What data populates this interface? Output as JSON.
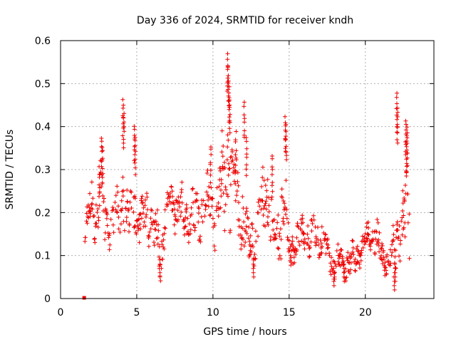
{
  "chart_data": {
    "type": "scatter",
    "title": "Day 336 of 2024, SRMTID for receiver kndh",
    "xlabel": "GPS time / hours",
    "ylabel": "SRMTID / TECUs",
    "xlim": [
      0,
      24.5
    ],
    "ylim": [
      0,
      0.6
    ],
    "x_ticks": [
      0,
      5,
      10,
      15,
      20
    ],
    "x_tick_labels": [
      "0",
      "5",
      "10",
      "15",
      "20"
    ],
    "y_ticks": [
      0,
      0.1,
      0.2,
      0.3,
      0.4,
      0.5,
      0.6
    ],
    "y_tick_labels": [
      "0",
      "0.1",
      "0.2",
      "0.3",
      "0.4",
      "0.5",
      "0.6"
    ],
    "grid": true,
    "marker": "plus",
    "color": "#ee0000",
    "series": [
      {
        "name": "kndh",
        "x_start": 1.6,
        "x_end": 22.9,
        "x_step": 0.0167,
        "note": "dense 1-minute samples",
        "envelope": {
          "x": [
            1.6,
            1.8,
            2.0,
            2.3,
            2.5,
            2.6,
            2.8,
            3.0,
            3.3,
            3.5,
            3.7,
            4.0,
            4.1,
            4.3,
            4.6,
            4.8,
            5.0,
            5.3,
            5.6,
            6.0,
            6.3,
            6.6,
            6.9,
            7.2,
            7.5,
            7.8,
            8.1,
            8.5,
            8.9,
            9.3,
            9.7,
            10.0,
            10.3,
            10.6,
            10.9,
            11.0,
            11.2,
            11.5,
            11.8,
            12.1,
            12.3,
            12.6,
            12.9,
            13.2,
            13.5,
            13.8,
            14.1,
            14.4,
            14.7,
            14.9,
            15.2,
            15.6,
            16.0,
            16.4,
            16.8,
            17.2,
            17.6,
            17.9,
            18.3,
            18.7,
            19.1,
            19.5,
            19.9,
            20.3,
            20.7,
            21.1,
            21.4,
            21.7,
            22.0,
            22.2,
            22.5,
            22.7,
            22.9
          ],
          "y": [
            0.15,
            0.2,
            0.21,
            0.19,
            0.22,
            0.3,
            0.2,
            0.16,
            0.17,
            0.19,
            0.18,
            0.2,
            0.33,
            0.18,
            0.2,
            0.27,
            0.19,
            0.17,
            0.2,
            0.18,
            0.14,
            0.1,
            0.2,
            0.21,
            0.22,
            0.2,
            0.18,
            0.2,
            0.19,
            0.21,
            0.22,
            0.2,
            0.24,
            0.25,
            0.3,
            0.38,
            0.27,
            0.24,
            0.21,
            0.16,
            0.12,
            0.14,
            0.15,
            0.22,
            0.26,
            0.18,
            0.14,
            0.16,
            0.25,
            0.13,
            0.12,
            0.13,
            0.15,
            0.14,
            0.15,
            0.14,
            0.09,
            0.08,
            0.09,
            0.08,
            0.09,
            0.1,
            0.12,
            0.15,
            0.14,
            0.1,
            0.09,
            0.1,
            0.13,
            0.2,
            0.16,
            0.22,
            0.17
          ],
          "spread": [
            0.03,
            0.04,
            0.05,
            0.06,
            0.05,
            0.07,
            0.06,
            0.05,
            0.05,
            0.05,
            0.05,
            0.06,
            0.09,
            0.06,
            0.06,
            0.08,
            0.06,
            0.05,
            0.05,
            0.05,
            0.06,
            0.05,
            0.05,
            0.04,
            0.05,
            0.05,
            0.05,
            0.05,
            0.05,
            0.05,
            0.05,
            0.06,
            0.07,
            0.09,
            0.12,
            0.14,
            0.1,
            0.08,
            0.07,
            0.06,
            0.05,
            0.05,
            0.05,
            0.07,
            0.08,
            0.06,
            0.05,
            0.06,
            0.1,
            0.04,
            0.04,
            0.04,
            0.04,
            0.04,
            0.04,
            0.04,
            0.03,
            0.03,
            0.03,
            0.03,
            0.03,
            0.03,
            0.03,
            0.03,
            0.04,
            0.03,
            0.03,
            0.03,
            0.05,
            0.1,
            0.07,
            0.09,
            0.06
          ]
        },
        "spikes": [
          {
            "x": 2.55,
            "y": 0.31
          },
          {
            "x": 2.7,
            "y": 0.38
          },
          {
            "x": 2.75,
            "y": 0.36
          },
          {
            "x": 4.1,
            "y": 0.47
          },
          {
            "x": 4.15,
            "y": 0.44
          },
          {
            "x": 4.85,
            "y": 0.41
          },
          {
            "x": 4.9,
            "y": 0.38
          },
          {
            "x": 9.85,
            "y": 0.36
          },
          {
            "x": 10.95,
            "y": 0.57
          },
          {
            "x": 11.0,
            "y": 0.55
          },
          {
            "x": 11.05,
            "y": 0.5
          },
          {
            "x": 11.1,
            "y": 0.47
          },
          {
            "x": 11.5,
            "y": 0.39
          },
          {
            "x": 12.05,
            "y": 0.46
          },
          {
            "x": 12.2,
            "y": 0.38
          },
          {
            "x": 13.9,
            "y": 0.34
          },
          {
            "x": 14.75,
            "y": 0.43
          },
          {
            "x": 14.8,
            "y": 0.41
          },
          {
            "x": 22.05,
            "y": 0.48
          },
          {
            "x": 22.1,
            "y": 0.45
          },
          {
            "x": 22.65,
            "y": 0.42
          },
          {
            "x": 22.7,
            "y": 0.38
          },
          {
            "x": 22.75,
            "y": 0.4
          }
        ],
        "dips": [
          {
            "x": 6.5,
            "y": 0.05
          },
          {
            "x": 12.65,
            "y": 0.05
          },
          {
            "x": 17.95,
            "y": 0.03
          },
          {
            "x": 18.6,
            "y": 0.04
          },
          {
            "x": 21.9,
            "y": 0.02
          },
          {
            "x": 21.95,
            "y": 0.04
          }
        ],
        "outliers": [
          {
            "x": 1.55,
            "y": 0.0
          }
        ]
      }
    ]
  }
}
